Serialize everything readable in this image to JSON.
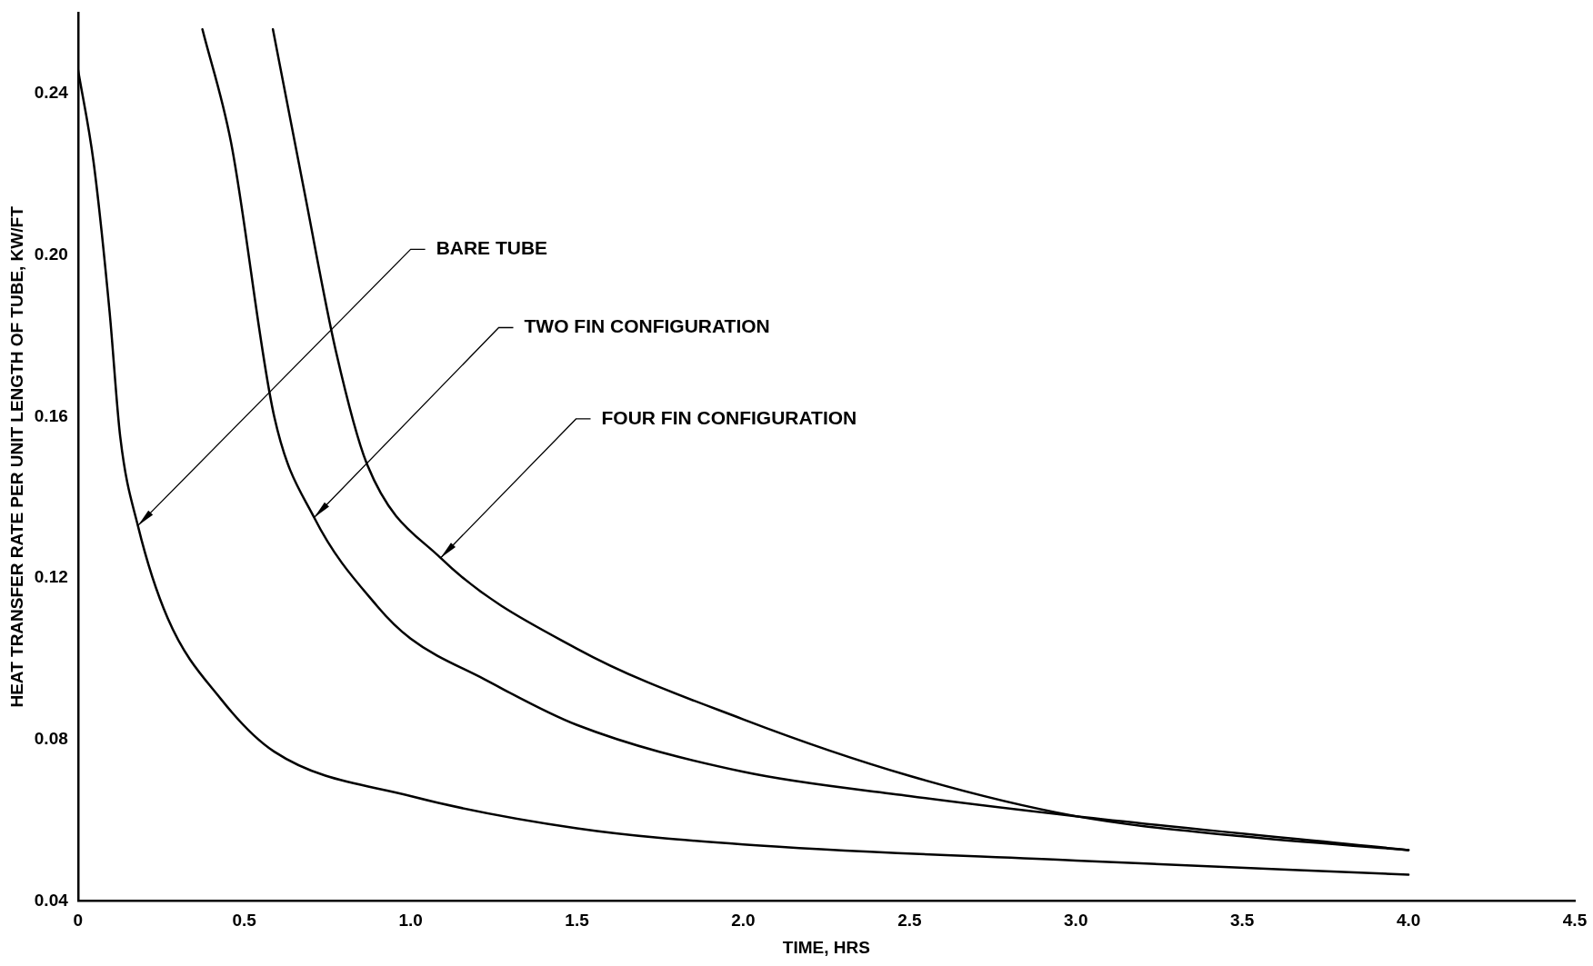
{
  "chart_data": {
    "type": "line",
    "xlabel": "TIME, HRS",
    "ylabel": "HEAT TRANSFER RATE PER UNIT LENGTH OF TUBE, KW/FT",
    "xlim": [
      0,
      4.5
    ],
    "ylim": [
      0.04,
      0.26
    ],
    "xticks": [
      0,
      {
        "value": 0.5,
        "label": "0.5"
      },
      {
        "value": 1,
        "label": "1.0"
      },
      {
        "value": 1.5,
        "label": "1.5"
      },
      {
        "value": 2,
        "label": "2.0"
      },
      {
        "value": 2.5,
        "label": "2.5"
      },
      {
        "value": 3,
        "label": "3.0"
      },
      {
        "value": 3.5,
        "label": "3.5"
      },
      {
        "value": 4,
        "label": "4.0"
      },
      {
        "value": 4.5,
        "label": "4.5"
      }
    ],
    "yticks": [
      0.04,
      0.08,
      0.12,
      0.16,
      {
        "value": 0.2,
        "label": "0.20"
      },
      0.24
    ],
    "grid": false,
    "legend": false,
    "marker": "none",
    "line_style": "solid",
    "series": [
      {
        "color": "#000000",
        "x": [
          0,
          0.047,
          0.095,
          0.127,
          0.18,
          0.27,
          0.43,
          0.59,
          1.0,
          1.5,
          2.0,
          3.0,
          4.0
        ],
        "values": [
          0.246,
          0.223,
          0.186,
          0.155,
          0.133,
          0.11,
          0.09,
          0.077,
          0.066,
          0.058,
          0.054,
          0.05,
          0.0465
        ]
      },
      {
        "color": "#000000",
        "x": [
          0.374,
          0.46,
          0.59,
          0.71,
          0.9,
          1.0,
          1.22,
          1.5,
          2.0,
          2.5,
          3.0,
          4.0
        ],
        "values": [
          0.256,
          0.228,
          0.16,
          0.135,
          0.113,
          0.105,
          0.095,
          0.0836,
          0.072,
          0.066,
          0.061,
          0.0526
        ]
      },
      {
        "color": "#000000",
        "x": [
          0.586,
          0.68,
          0.776,
          0.87,
          1.09,
          1.5,
          2.0,
          2.5,
          3.0,
          3.5,
          4.0
        ],
        "values": [
          0.256,
          0.216,
          0.176,
          0.148,
          0.125,
          0.1025,
          0.085,
          0.071,
          0.061,
          0.056,
          0.0526
        ]
      }
    ],
    "annotations": [
      {
        "text": "BARE TUBE",
        "x": 0.18,
        "y": 0.133
      },
      {
        "text": "TWO FIN CONFIGURATION",
        "x": 0.71,
        "y": 0.135
      },
      {
        "text": "FOUR FIN CONFIGURATION",
        "x": 1.09,
        "y": 0.125
      }
    ]
  }
}
